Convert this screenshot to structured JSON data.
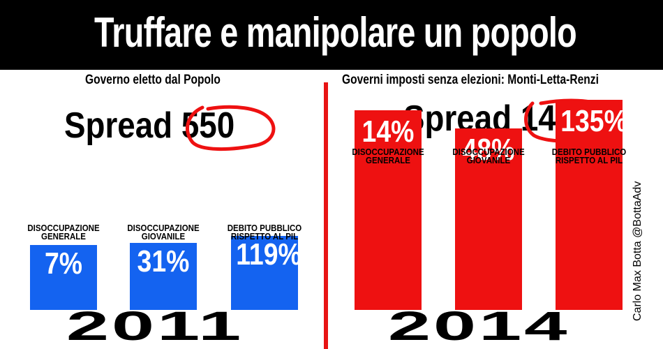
{
  "title": "Truffare e manipolare un popolo",
  "credit": "Carlo Max Botta @BottaAdv",
  "colors": {
    "left_bars": "#1463f0",
    "right_bars": "#ee1111",
    "divider": "#e81414",
    "circle": "#ee1111"
  },
  "chart_data": [
    {
      "type": "bar",
      "title": "Governo eletto dal Popolo",
      "year": "2011",
      "spread_label": "Spread",
      "spread_value": "550",
      "categories": [
        "DISOCCUPAZIONE GENERALE",
        "DISOCCUPAZIONE GIOVANILE",
        "DEBITO PUBBLICO RISPETTO AL PIL"
      ],
      "category_lines": [
        [
          "DISOCCUPAZIONE",
          "GENERALE"
        ],
        [
          "DISOCCUPAZIONE",
          "GIOVANILE"
        ],
        [
          "DEBITO PUBBLICO",
          "RISPETTO AL PIL"
        ]
      ],
      "values": [
        7,
        31,
        119
      ],
      "value_labels": [
        "7%",
        "31%",
        "119%"
      ]
    },
    {
      "type": "bar",
      "title": "Governi imposti senza elezioni: Monti-Letta-Renzi",
      "year": "2014",
      "spread_label": "Spread",
      "spread_value": "140",
      "categories": [
        "DISOCCUPAZIONE GENERALE",
        "DISOCCUPAZIONE GIOVANILE",
        "DEBITO PUBBLICO RISPETTO AL PIL"
      ],
      "category_lines": [
        [
          "DISOCCUPAZIONE",
          "GENERALE"
        ],
        [
          "DISOCCUPAZIONE",
          "GIOVANILE"
        ],
        [
          "DEBITO PUBBLICO",
          "RISPETTO AL PIL"
        ]
      ],
      "values": [
        14,
        48,
        135
      ],
      "value_labels": [
        "14%",
        "48%",
        "135%"
      ]
    }
  ]
}
